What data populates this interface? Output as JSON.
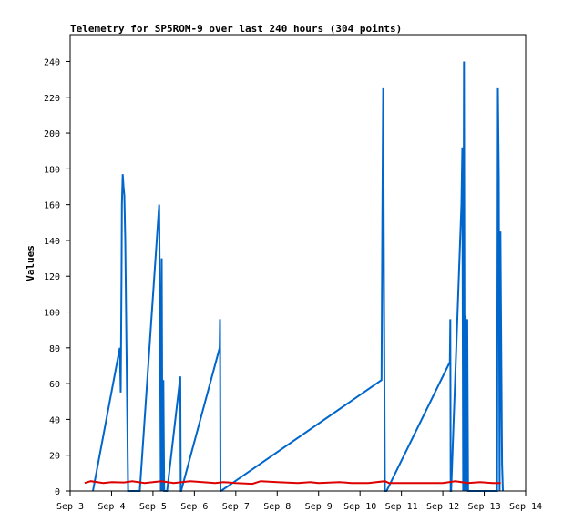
{
  "chart_data": {
    "type": "line",
    "title": "Telemetry for SP5ROM-9 over last 240 hours (304 points)",
    "xlabel": "",
    "ylabel": "Values",
    "xlim": [
      3.0,
      14.0
    ],
    "ylim": [
      0,
      255
    ],
    "x_tick_values": [
      3,
      4,
      5,
      6,
      7,
      8,
      9,
      10,
      11,
      12,
      13,
      14
    ],
    "x_tick_labels": [
      "Sep 3",
      "Sep 4",
      "Sep 5",
      "Sep 6",
      "Sep 7",
      "Sep 8",
      "Sep 9",
      "Sep 10",
      "Sep 11",
      "Sep 12",
      "Sep 13",
      "Sep 14"
    ],
    "y_ticks": [
      0,
      20,
      40,
      60,
      80,
      100,
      120,
      140,
      160,
      180,
      200,
      220,
      240
    ],
    "grid": false,
    "series": [
      {
        "color": "#0066cc",
        "x": [
          3.55,
          4.2,
          4.22,
          4.24,
          4.25,
          4.27,
          4.29,
          4.31,
          4.33,
          4.35,
          4.4,
          4.6,
          4.68,
          5.15,
          5.17,
          5.19,
          5.21,
          5.23,
          5.25,
          5.27,
          5.3,
          5.32,
          5.34,
          5.66,
          5.67,
          5.68,
          6.61,
          6.62,
          6.63,
          6.64,
          10.52,
          10.54,
          10.56,
          10.58,
          10.6,
          10.62,
          10.64,
          12.17,
          12.18,
          12.19,
          12.2,
          12.45,
          12.47,
          12.49,
          12.51,
          12.53,
          12.55,
          12.57,
          12.59,
          12.61,
          12.63,
          13.31,
          13.33,
          13.35,
          13.37,
          13.39,
          13.41,
          13.43,
          13.45
        ],
        "y": [
          0,
          80,
          55,
          120,
          160,
          177,
          170,
          165,
          140,
          100,
          0,
          0,
          0,
          160,
          100,
          0,
          130,
          0,
          62,
          0,
          0,
          0,
          0,
          64,
          0,
          0,
          80,
          96,
          0,
          0,
          62,
          153,
          225,
          110,
          0,
          0,
          0,
          72,
          96,
          0,
          0,
          160,
          192,
          0,
          240,
          0,
          98,
          0,
          96,
          0,
          0,
          0,
          225,
          176,
          0,
          145,
          80,
          15,
          0
        ]
      },
      {
        "color": "#dd0000",
        "x": [
          3.35,
          3.5,
          3.8,
          4.0,
          4.3,
          4.5,
          4.8,
          5.0,
          5.2,
          5.5,
          5.7,
          5.9,
          6.2,
          6.5,
          6.7,
          7.0,
          7.4,
          7.6,
          8.0,
          8.5,
          8.8,
          9.0,
          9.5,
          9.8,
          10.2,
          10.6,
          10.7,
          11.0,
          11.5,
          12.0,
          12.3,
          12.6,
          12.9,
          13.2,
          13.4
        ],
        "y": [
          4.5,
          5.5,
          4.5,
          5,
          4.8,
          5.5,
          4.5,
          5,
          5.5,
          4.5,
          5,
          5.5,
          5,
          4.5,
          5,
          4.5,
          4,
          5.5,
          5,
          4.5,
          5,
          4.5,
          5,
          4.5,
          4.5,
          5.5,
          4.5,
          4.5,
          4.5,
          4.5,
          5.5,
          4.5,
          5,
          4.5,
          4.5
        ]
      }
    ]
  }
}
